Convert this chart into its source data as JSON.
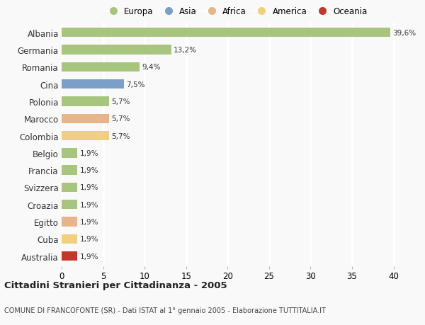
{
  "categories": [
    "Albania",
    "Germania",
    "Romania",
    "Cina",
    "Polonia",
    "Marocco",
    "Colombia",
    "Belgio",
    "Francia",
    "Svizzera",
    "Croazia",
    "Egitto",
    "Cuba",
    "Australia"
  ],
  "values": [
    39.6,
    13.2,
    9.4,
    7.5,
    5.7,
    5.7,
    5.7,
    1.9,
    1.9,
    1.9,
    1.9,
    1.9,
    1.9,
    1.9
  ],
  "labels": [
    "39,6%",
    "13,2%",
    "9,4%",
    "7,5%",
    "5,7%",
    "5,7%",
    "5,7%",
    "1,9%",
    "1,9%",
    "1,9%",
    "1,9%",
    "1,9%",
    "1,9%",
    "1,9%"
  ],
  "bar_colors": [
    "#a8c580",
    "#a8c580",
    "#a8c580",
    "#7b9fc9",
    "#a8c580",
    "#e8b48a",
    "#f0d080",
    "#a8c580",
    "#a8c580",
    "#a8c580",
    "#a8c580",
    "#e8b48a",
    "#f0d080",
    "#c0392b"
  ],
  "legend_labels": [
    "Europa",
    "Asia",
    "Africa",
    "America",
    "Oceania"
  ],
  "legend_colors": [
    "#a8c580",
    "#7b9fc9",
    "#e8b48a",
    "#f0d080",
    "#c0392b"
  ],
  "xlim": [
    0,
    42
  ],
  "xticks": [
    0,
    5,
    10,
    15,
    20,
    25,
    30,
    35,
    40
  ],
  "title": "Cittadini Stranieri per Cittadinanza - 2005",
  "subtitle": "COMUNE DI FRANCOFONTE (SR) - Dati ISTAT al 1° gennaio 2005 - Elaborazione TUTTITALIA.IT",
  "background_color": "#f9f9f9",
  "grid_color": "#ffffff",
  "bar_height": 0.55
}
